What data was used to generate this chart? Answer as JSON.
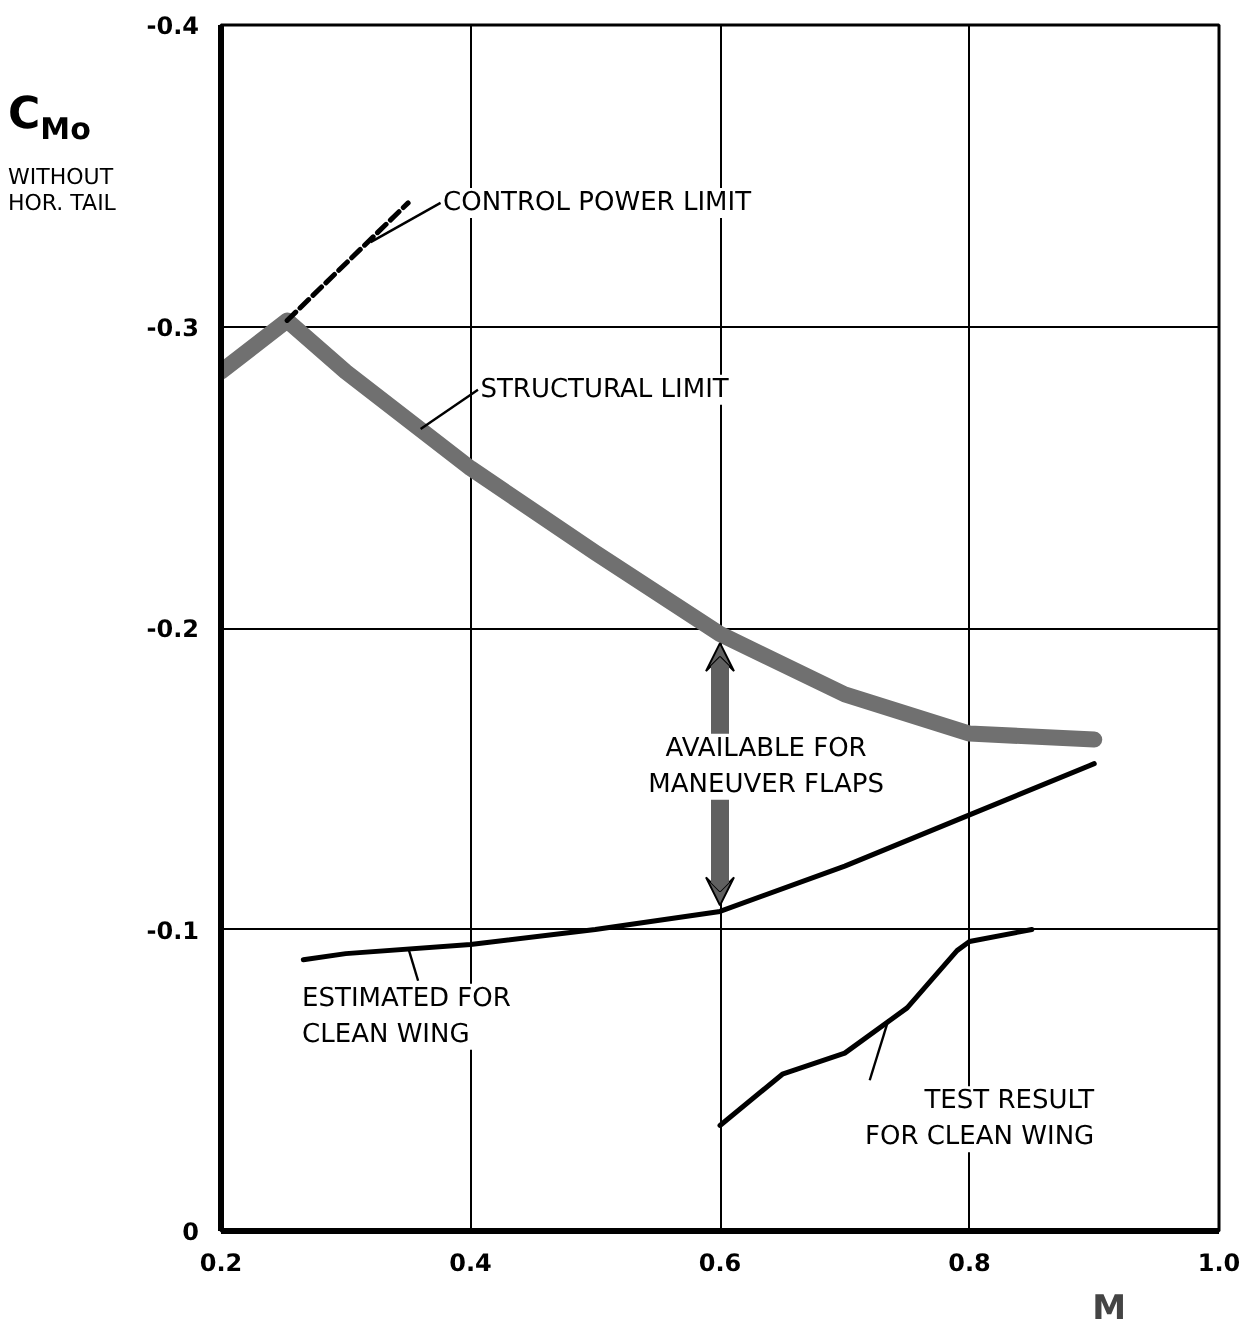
{
  "chart_data": {
    "type": "line",
    "xlabel": "M",
    "ylabel": "C$_{Mo}$",
    "xlim": [
      0.2,
      1.0
    ],
    "xticks": [
      0.2,
      0.4,
      0.6,
      0.8,
      {
        "value": 1.0,
        "label": "1.0"
      }
    ],
    "ylim": [
      0,
      -0.4
    ],
    "yticks": [
      0,
      -0.1,
      -0.2,
      -0.3,
      -0.4
    ],
    "grid": true,
    "marker": "none",
    "series": [
      {
        "color": "#707070",
        "line_style": "solid",
        "x": [
          0.2,
          0.253,
          0.3,
          0.4,
          0.5,
          0.6,
          0.7,
          0.8,
          0.9
        ],
        "values": [
          -0.285,
          -0.302,
          -0.285,
          -0.253,
          -0.225,
          -0.198,
          -0.178,
          -0.165,
          -0.163
        ]
      },
      {
        "color": "#000000",
        "line_style": "dashed",
        "x": [
          0.253,
          0.35
        ],
        "values": [
          -0.302,
          -0.341
        ]
      },
      {
        "color": "#000000",
        "line_style": "solid",
        "x": [
          0.266,
          0.3,
          0.4,
          0.5,
          0.6,
          0.7,
          0.8,
          0.9
        ],
        "values": [
          -0.09,
          -0.092,
          -0.095,
          -0.1,
          -0.106,
          -0.121,
          -0.138,
          -0.155
        ]
      },
      {
        "color": "#000000",
        "line_style": "solid",
        "x": [
          0.6,
          0.65,
          0.7,
          0.75,
          0.79,
          0.8,
          0.85
        ],
        "values": [
          -0.035,
          -0.052,
          -0.059,
          -0.074,
          -0.093,
          -0.096,
          -0.1
        ]
      }
    ],
    "annotations": [
      {
        "text": "CONTROL POWER LIMIT",
        "x": 0.32,
        "y": -0.328
      },
      {
        "text": "STRUCTURAL LIMIT",
        "x": 0.36,
        "y": -0.266
      },
      "AVAILABLE FOR\nMANEUVER FLAPS",
      {
        "text": "ESTIMATED FOR\nCLEAN WING",
        "x": 0.35,
        "y": -0.094
      },
      {
        "text": "TEST RESULT\nFOR CLEAN WING",
        "x": 0.735,
        "y": -0.07
      },
      "WITHOUT\nHOR. TAIL"
    ]
  }
}
